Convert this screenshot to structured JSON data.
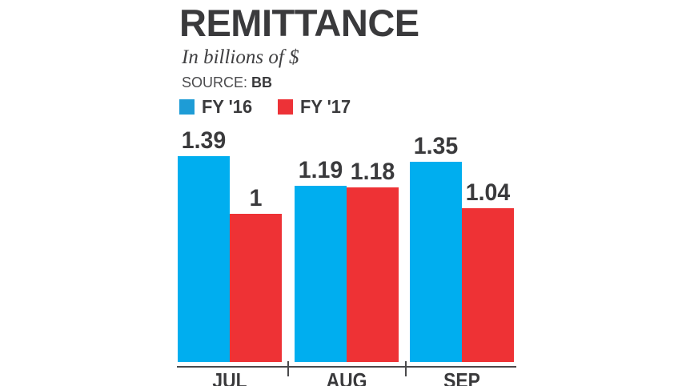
{
  "page": {
    "background": "#ffffff"
  },
  "header": {
    "title": "REMITTANCE",
    "subtitle": "In billions of $",
    "source_label": "SOURCE:",
    "source_value": "BB"
  },
  "legend": {
    "items": [
      {
        "label": "FY '16",
        "color": "#1e9cd6"
      },
      {
        "label": "FY '17",
        "color": "#ed3237"
      }
    ]
  },
  "colors": {
    "text_dark": "#3a3a3c",
    "axis": "#4a4a4c",
    "bar_blue": "#00aeef",
    "bar_red": "#ee3235",
    "background": "#ffffff"
  },
  "chart_data": {
    "type": "bar",
    "title": "REMITTANCE",
    "subtitle": "In billions of $",
    "source": "SOURCE: BB",
    "unit": "billions of $",
    "categories": [
      "JUL",
      "AUG",
      "SEP"
    ],
    "series": [
      {
        "name": "FY '16",
        "color": "#00aeef",
        "values": [
          1.39,
          1.19,
          1.35
        ],
        "display_labels": [
          "1.39",
          "1.19",
          "1.35"
        ]
      },
      {
        "name": "FY '17",
        "color": "#ee3235",
        "values": [
          1.0,
          1.18,
          1.04
        ],
        "display_labels": [
          "1",
          "1.18",
          "1.04"
        ]
      }
    ],
    "ylim": [
      0,
      1.5
    ],
    "grid": false,
    "y_axis_shown": false,
    "value_labels": true,
    "legend_position": "top-left"
  }
}
